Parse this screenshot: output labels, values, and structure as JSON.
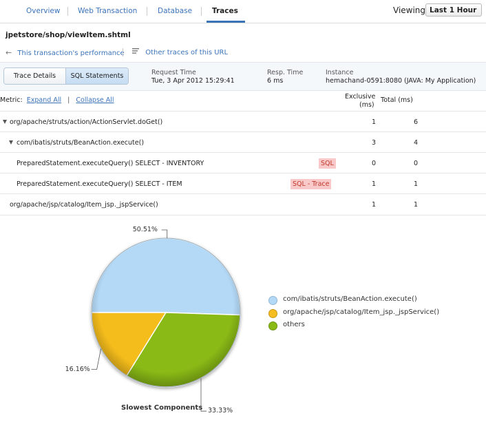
{
  "nav": {
    "tabs": [
      "Overview",
      "Web Transaction",
      "Database",
      "Traces"
    ],
    "active_tab": "Traces",
    "viewing_label": "Viewing",
    "viewing_value": "Last 1 Hour"
  },
  "header": {
    "url_title": "jpetstore/shop/viewItem.shtml",
    "perf_link": "This transaction's performance",
    "other_traces_link": "Other traces of this URL"
  },
  "toggle": {
    "trace_details": "Trace Details",
    "sql_statements": "SQL Statements",
    "active": "SQL Statements"
  },
  "info": {
    "request_time_label": "Request Time",
    "request_time_value": "Tue, 3 Apr 2012 15:29:41",
    "resp_time_label": "Resp. Time",
    "resp_time_value": "6 ms",
    "instance_label": "Instance",
    "instance_value": "hemachand-0591:8080 (JAVA: My Application)"
  },
  "table": {
    "metric_label": "Metric:",
    "expand_all": "Expand All",
    "collapse_all": "Collapse All",
    "col_exclusive_1": "Exclusive",
    "col_exclusive_2": "(ms)",
    "col_total": "Total (ms)",
    "rows": [
      {
        "name": "org/apache/struts/action/ActionServlet.doGet()",
        "badge": "",
        "exclusive": "1",
        "total": "6"
      },
      {
        "name": "com/ibatis/struts/BeanAction.execute()",
        "badge": "",
        "exclusive": "3",
        "total": "4"
      },
      {
        "name": "PreparedStatement.executeQuery() SELECT - INVENTORY",
        "badge": "SQL",
        "exclusive": "0",
        "total": "0"
      },
      {
        "name": "PreparedStatement.executeQuery() SELECT - ITEM",
        "badge": "SQL - Trace",
        "exclusive": "1",
        "total": "1"
      },
      {
        "name": "org/apache/jsp/catalog/Item_jsp._jspService()",
        "badge": "",
        "exclusive": "1",
        "total": "1"
      }
    ]
  },
  "chart_data": {
    "type": "pie",
    "title": "Slowest Components",
    "slices": [
      {
        "label": "com/ibatis/struts/BeanAction.execute()",
        "value": 50.51,
        "pct_label": "50.51%",
        "color": "#b3d9f7"
      },
      {
        "label": "others",
        "value": 33.33,
        "pct_label": "33.33%",
        "color": "#8aba14"
      },
      {
        "label": "org/apache/jsp/catalog/Item_jsp._jspService()",
        "value": 16.16,
        "pct_label": "16.16%",
        "color": "#f5bd1f"
      }
    ],
    "legend": [
      {
        "label": "com/ibatis/struts/BeanAction.execute()",
        "color": "#b3d9f7"
      },
      {
        "label": "org/apache/jsp/catalog/Item_jsp._jspService()",
        "color": "#f5bd1f"
      },
      {
        "label": "others",
        "color": "#8aba14"
      }
    ],
    "legend_position": "right"
  },
  "colors": {
    "link": "#3b73b9",
    "accent_tab": "#3b73b9",
    "sql_badge_bg": "#f9c9c9",
    "sql_badge_text": "#c0392b"
  }
}
